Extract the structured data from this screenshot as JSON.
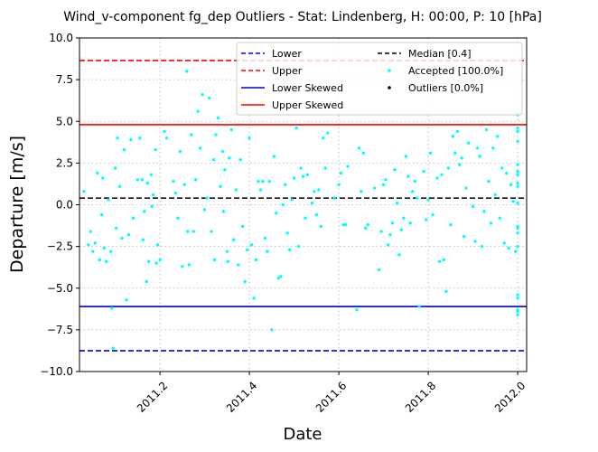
{
  "chart_data": {
    "type": "scatter",
    "title": "Wind_v-component fg_dep Outliers - Stat: Lindenberg, H: 00:00, P: 10 [hPa]",
    "xlabel": "Date",
    "ylabel": "Departure [m/s]",
    "xlim": [
      2011.02,
      2012.02
    ],
    "ylim": [
      -10.0,
      10.0
    ],
    "x_ticks": [
      2011.2,
      2011.4,
      2011.6,
      2011.8,
      2012.0
    ],
    "x_tick_labels": [
      "2011.2",
      "2011.4",
      "2011.6",
      "2011.8",
      "2012.0"
    ],
    "y_ticks": [
      -10.0,
      -7.5,
      -5.0,
      -2.5,
      0.0,
      2.5,
      5.0,
      7.5,
      10.0
    ],
    "y_tick_labels": [
      "−10.0",
      "−7.5",
      "−5.0",
      "−2.5",
      "0.0",
      "2.5",
      "5.0",
      "7.5",
      "10.0"
    ],
    "grid": true,
    "legend_position": "top-right",
    "lines": [
      {
        "name": "Lower",
        "y": -8.75,
        "color": "#0000ff",
        "style": "dashed"
      },
      {
        "name": "Upper",
        "y": 8.65,
        "color": "#ff0000",
        "style": "dashed"
      },
      {
        "name": "Lower Skewed",
        "y": -6.1,
        "color": "#0000cc",
        "style": "solid"
      },
      {
        "name": "Upper Skewed",
        "y": 4.8,
        "color": "#ff0000",
        "style": "solid"
      },
      {
        "name": "Median [0.4]",
        "y": 0.4,
        "color": "#000000",
        "style": "dashed"
      }
    ],
    "series": [
      {
        "name": "Accepted [100.0%]",
        "color": "#00ffff",
        "points": [
          [
            2011.03,
            0.8
          ],
          [
            2011.04,
            -2.4
          ],
          [
            2011.045,
            -1.6
          ],
          [
            2011.05,
            -2.8
          ],
          [
            2011.055,
            -2.3
          ],
          [
            2011.06,
            1.9
          ],
          [
            2011.065,
            -3.3
          ],
          [
            2011.07,
            -0.6
          ],
          [
            2011.072,
            1.6
          ],
          [
            2011.075,
            -2.6
          ],
          [
            2011.08,
            -3.4
          ],
          [
            2011.085,
            0.3
          ],
          [
            2011.09,
            -2.8
          ],
          [
            2011.092,
            -6.2
          ],
          [
            2011.095,
            -8.6
          ],
          [
            2011.1,
            2.2
          ],
          [
            2011.102,
            -1.4
          ],
          [
            2011.105,
            4.0
          ],
          [
            2011.11,
            1.1
          ],
          [
            2011.115,
            -2.0
          ],
          [
            2011.12,
            3.3
          ],
          [
            2011.125,
            -5.7
          ],
          [
            2011.13,
            -1.8
          ],
          [
            2011.135,
            3.9
          ],
          [
            2011.14,
            -0.8
          ],
          [
            2011.15,
            1.5
          ],
          [
            2011.155,
            4.0
          ],
          [
            2011.16,
            1.5
          ],
          [
            2011.162,
            -2.1
          ],
          [
            2011.165,
            -0.4
          ],
          [
            2011.17,
            -4.6
          ],
          [
            2011.172,
            1.3
          ],
          [
            2011.175,
            -3.4
          ],
          [
            2011.18,
            1.8
          ],
          [
            2011.182,
            -0.1
          ],
          [
            2011.185,
            0.6
          ],
          [
            2011.19,
            3.3
          ],
          [
            2011.192,
            -3.5
          ],
          [
            2011.195,
            -2.4
          ],
          [
            2011.2,
            -3.3
          ],
          [
            2011.21,
            4.4
          ],
          [
            2011.215,
            4.0
          ],
          [
            2011.23,
            1.4
          ],
          [
            2011.235,
            0.7
          ],
          [
            2011.24,
            -0.8
          ],
          [
            2011.245,
            3.2
          ],
          [
            2011.25,
            -3.7
          ],
          [
            2011.255,
            1.2
          ],
          [
            2011.26,
            8.0
          ],
          [
            2011.262,
            -1.6
          ],
          [
            2011.265,
            -3.6
          ],
          [
            2011.27,
            4.2
          ],
          [
            2011.275,
            -1.6
          ],
          [
            2011.28,
            1.5
          ],
          [
            2011.285,
            5.6
          ],
          [
            2011.29,
            3.4
          ],
          [
            2011.295,
            6.6
          ],
          [
            2011.3,
            -0.3
          ],
          [
            2011.305,
            0.4
          ],
          [
            2011.31,
            6.4
          ],
          [
            2011.315,
            -1.6
          ],
          [
            2011.32,
            2.7
          ],
          [
            2011.322,
            -3.3
          ],
          [
            2011.325,
            4.2
          ],
          [
            2011.33,
            5.2
          ],
          [
            2011.335,
            1.1
          ],
          [
            2011.34,
            3.2
          ],
          [
            2011.342,
            -0.4
          ],
          [
            2011.345,
            2.1
          ],
          [
            2011.35,
            -2.8
          ],
          [
            2011.352,
            -3.4
          ],
          [
            2011.355,
            2.8
          ],
          [
            2011.36,
            4.5
          ],
          [
            2011.365,
            -2.1
          ],
          [
            2011.37,
            0.9
          ],
          [
            2011.375,
            -3.6
          ],
          [
            2011.38,
            2.7
          ],
          [
            2011.385,
            -1.3
          ],
          [
            2011.39,
            -4.6
          ],
          [
            2011.395,
            -2.7
          ],
          [
            2011.4,
            4.0
          ],
          [
            2011.405,
            -2.4
          ],
          [
            2011.41,
            -5.6
          ],
          [
            2011.415,
            -3.3
          ],
          [
            2011.42,
            1.4
          ],
          [
            2011.425,
            0.9
          ],
          [
            2011.43,
            1.4
          ],
          [
            2011.435,
            -2.0
          ],
          [
            2011.44,
            -2.8
          ],
          [
            2011.445,
            1.4
          ],
          [
            2011.45,
            -7.5
          ],
          [
            2011.455,
            2.9
          ],
          [
            2011.46,
            -0.5
          ],
          [
            2011.465,
            -4.4
          ],
          [
            2011.47,
            -4.3
          ],
          [
            2011.475,
            0.0
          ],
          [
            2011.48,
            1.2
          ],
          [
            2011.485,
            -1.7
          ],
          [
            2011.49,
            -2.7
          ],
          [
            2011.495,
            0.3
          ],
          [
            2011.5,
            1.6
          ],
          [
            2011.505,
            4.6
          ],
          [
            2011.51,
            -2.5
          ],
          [
            2011.515,
            2.2
          ],
          [
            2011.52,
            1.7
          ],
          [
            2011.525,
            -0.8
          ],
          [
            2011.53,
            1.8
          ],
          [
            2011.54,
            0.1
          ],
          [
            2011.545,
            0.8
          ],
          [
            2011.55,
            -0.6
          ],
          [
            2011.555,
            0.9
          ],
          [
            2011.56,
            -1.3
          ],
          [
            2011.565,
            4.0
          ],
          [
            2011.57,
            2.2
          ],
          [
            2011.575,
            4.3
          ],
          [
            2011.59,
            0.4
          ],
          [
            2011.6,
            1.2
          ],
          [
            2011.605,
            1.9
          ],
          [
            2011.61,
            -1.2
          ],
          [
            2011.615,
            -1.2
          ],
          [
            2011.62,
            2.3
          ],
          [
            2011.64,
            -6.3
          ],
          [
            2011.645,
            3.4
          ],
          [
            2011.65,
            0.8
          ],
          [
            2011.655,
            3.1
          ],
          [
            2011.66,
            -1.4
          ],
          [
            2011.665,
            -1.2
          ],
          [
            2011.68,
            1.0
          ],
          [
            2011.69,
            -3.9
          ],
          [
            2011.695,
            -1.6
          ],
          [
            2011.7,
            1.2
          ],
          [
            2011.705,
            1.5
          ],
          [
            2011.71,
            -2.4
          ],
          [
            2011.715,
            -1.8
          ],
          [
            2011.72,
            -1.1
          ],
          [
            2011.725,
            2.1
          ],
          [
            2011.73,
            0.1
          ],
          [
            2011.735,
            -3.0
          ],
          [
            2011.74,
            -1.5
          ],
          [
            2011.745,
            -0.8
          ],
          [
            2011.75,
            2.9
          ],
          [
            2011.755,
            1.7
          ],
          [
            2011.76,
            -1.1
          ],
          [
            2011.765,
            0.8
          ],
          [
            2011.77,
            1.4
          ],
          [
            2011.775,
            0.4
          ],
          [
            2011.78,
            -6.1
          ],
          [
            2011.79,
            2.0
          ],
          [
            2011.795,
            -0.9
          ],
          [
            2011.8,
            0.3
          ],
          [
            2011.805,
            3.1
          ],
          [
            2011.81,
            -0.6
          ],
          [
            2011.82,
            1.6
          ],
          [
            2011.825,
            -3.4
          ],
          [
            2011.83,
            1.8
          ],
          [
            2011.835,
            -3.3
          ],
          [
            2011.84,
            -5.2
          ],
          [
            2011.845,
            2.2
          ],
          [
            2011.85,
            -1.2
          ],
          [
            2011.855,
            4.1
          ],
          [
            2011.86,
            3.1
          ],
          [
            2011.865,
            4.4
          ],
          [
            2011.87,
            2.4
          ],
          [
            2011.875,
            2.8
          ],
          [
            2011.88,
            -1.9
          ],
          [
            2011.885,
            1.0
          ],
          [
            2011.89,
            3.7
          ],
          [
            2011.9,
            -0.1
          ],
          [
            2011.905,
            -2.2
          ],
          [
            2011.91,
            3.4
          ],
          [
            2011.915,
            2.9
          ],
          [
            2011.92,
            -2.5
          ],
          [
            2011.925,
            -0.4
          ],
          [
            2011.93,
            4.5
          ],
          [
            2011.935,
            1.4
          ],
          [
            2011.94,
            -1.1
          ],
          [
            2011.945,
            3.4
          ],
          [
            2011.95,
            0.6
          ],
          [
            2011.955,
            4.1
          ],
          [
            2011.96,
            -0.8
          ],
          [
            2011.965,
            2.2
          ],
          [
            2011.97,
            -2.3
          ],
          [
            2011.975,
            1.9
          ],
          [
            2011.98,
            -2.6
          ],
          [
            2011.985,
            1.2
          ],
          [
            2011.99,
            0.2
          ],
          [
            2011.995,
            -2.8
          ],
          [
            2012.0,
            1.8
          ],
          [
            2012.0,
            -1.3
          ],
          [
            2012.0,
            -2.5
          ],
          [
            2012.0,
            2.4
          ],
          [
            2012.0,
            2.0
          ],
          [
            2012.0,
            -6.6
          ],
          [
            2012.0,
            0.1
          ],
          [
            2012.0,
            -1.4
          ],
          [
            2012.0,
            1.1
          ],
          [
            2012.0,
            5.4
          ],
          [
            2012.0,
            -6.4
          ],
          [
            2012.0,
            -5.6
          ],
          [
            2012.0,
            1.8
          ],
          [
            2012.0,
            4.4
          ],
          [
            2012.0,
            3.8
          ],
          [
            2012.0,
            -1.7
          ],
          [
            2012.0,
            2.0
          ],
          [
            2012.0,
            1.3
          ],
          [
            2012.0,
            -6.3
          ],
          [
            2012.0,
            4.6
          ],
          [
            2012.0,
            -5.4
          ]
        ]
      },
      {
        "name": "Outliers [0.0%]",
        "color": "#000000",
        "points": []
      }
    ]
  }
}
